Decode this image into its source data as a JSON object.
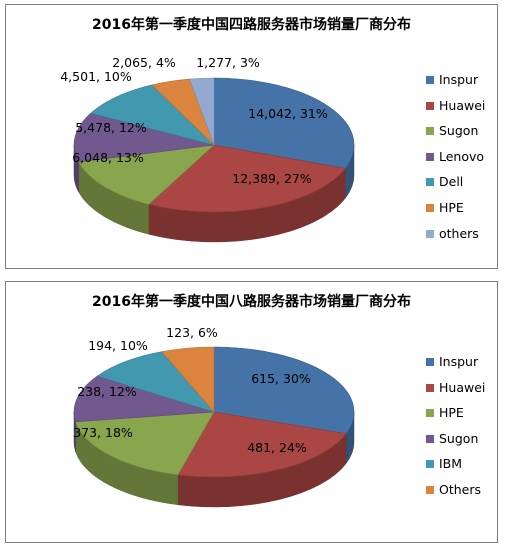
{
  "chart_data": [
    {
      "type": "pie",
      "title": "2016年第一季度中国四路服务器市场销量厂商分布",
      "categories": [
        "Inspur",
        "Huawei",
        "Sugon",
        "Lenovo",
        "Dell",
        "HPE",
        "others"
      ],
      "values": [
        14042,
        12389,
        6048,
        5478,
        4501,
        2065,
        1277
      ],
      "percents": [
        31,
        27,
        13,
        12,
        10,
        4,
        3
      ],
      "data_labels": [
        "14,042, 31%",
        "12,389, 27%",
        "6,048, 13%",
        "5,478, 12%",
        "4,501, 10%",
        "2,065, 4%",
        "1,277, 3%"
      ],
      "colors": [
        "#4572a7",
        "#aa4643",
        "#89a54e",
        "#71588f",
        "#4198af",
        "#db843d",
        "#93a9cf"
      ],
      "legend_position": "right"
    },
    {
      "type": "pie",
      "title": "2016年第一季度中国八路服务器市场销量厂商分布",
      "categories": [
        "Inspur",
        "Huawei",
        "HPE",
        "Sugon",
        "IBM",
        "Others"
      ],
      "values": [
        615,
        481,
        373,
        238,
        194,
        123
      ],
      "percents": [
        30,
        24,
        18,
        12,
        10,
        6
      ],
      "data_labels": [
        "615, 30%",
        "481, 24%",
        "373, 18%",
        "238, 12%",
        "194, 10%",
        "123, 6%"
      ],
      "colors": [
        "#4572a7",
        "#aa4643",
        "#89a54e",
        "#71588f",
        "#4198af",
        "#db843d"
      ],
      "legend_position": "right"
    }
  ]
}
